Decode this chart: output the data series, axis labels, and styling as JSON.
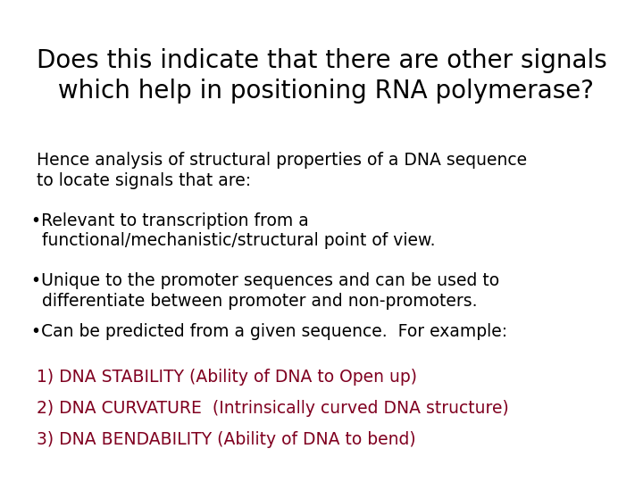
{
  "background_color": "#ffffff",
  "title_line1": "Does this indicate that there are other signals",
  "title_line2": " which help in positioning RNA polymerase?",
  "title_color": "#000000",
  "title_fontsize": 20,
  "body_color": "#000000",
  "body_fontsize": 13.5,
  "red_color": "#800020",
  "red_fontsize": 13.5,
  "line1": "  Hence analysis of structural properties of a DNA sequence",
  "line2": "  to locate signals that are:",
  "bullet1_line1": " •Relevant to transcription from a",
  "bullet1_line2": "   functional/mechanistic/structural point of view.",
  "bullet2_line1": " •Unique to the promoter sequences and can be used to",
  "bullet2_line2": "   differentiate between promoter and non-promoters.",
  "bullet3": " •Can be predicted from a given sequence.  For example:",
  "red1": "  1) DNA STABILITY (Ability of DNA to Open up)",
  "red2": "  2) DNA CURVATURE  (Intrinsically curved DNA structure)",
  "red3": "  3) DNA BENDABILITY (Ability of DNA to bend)"
}
